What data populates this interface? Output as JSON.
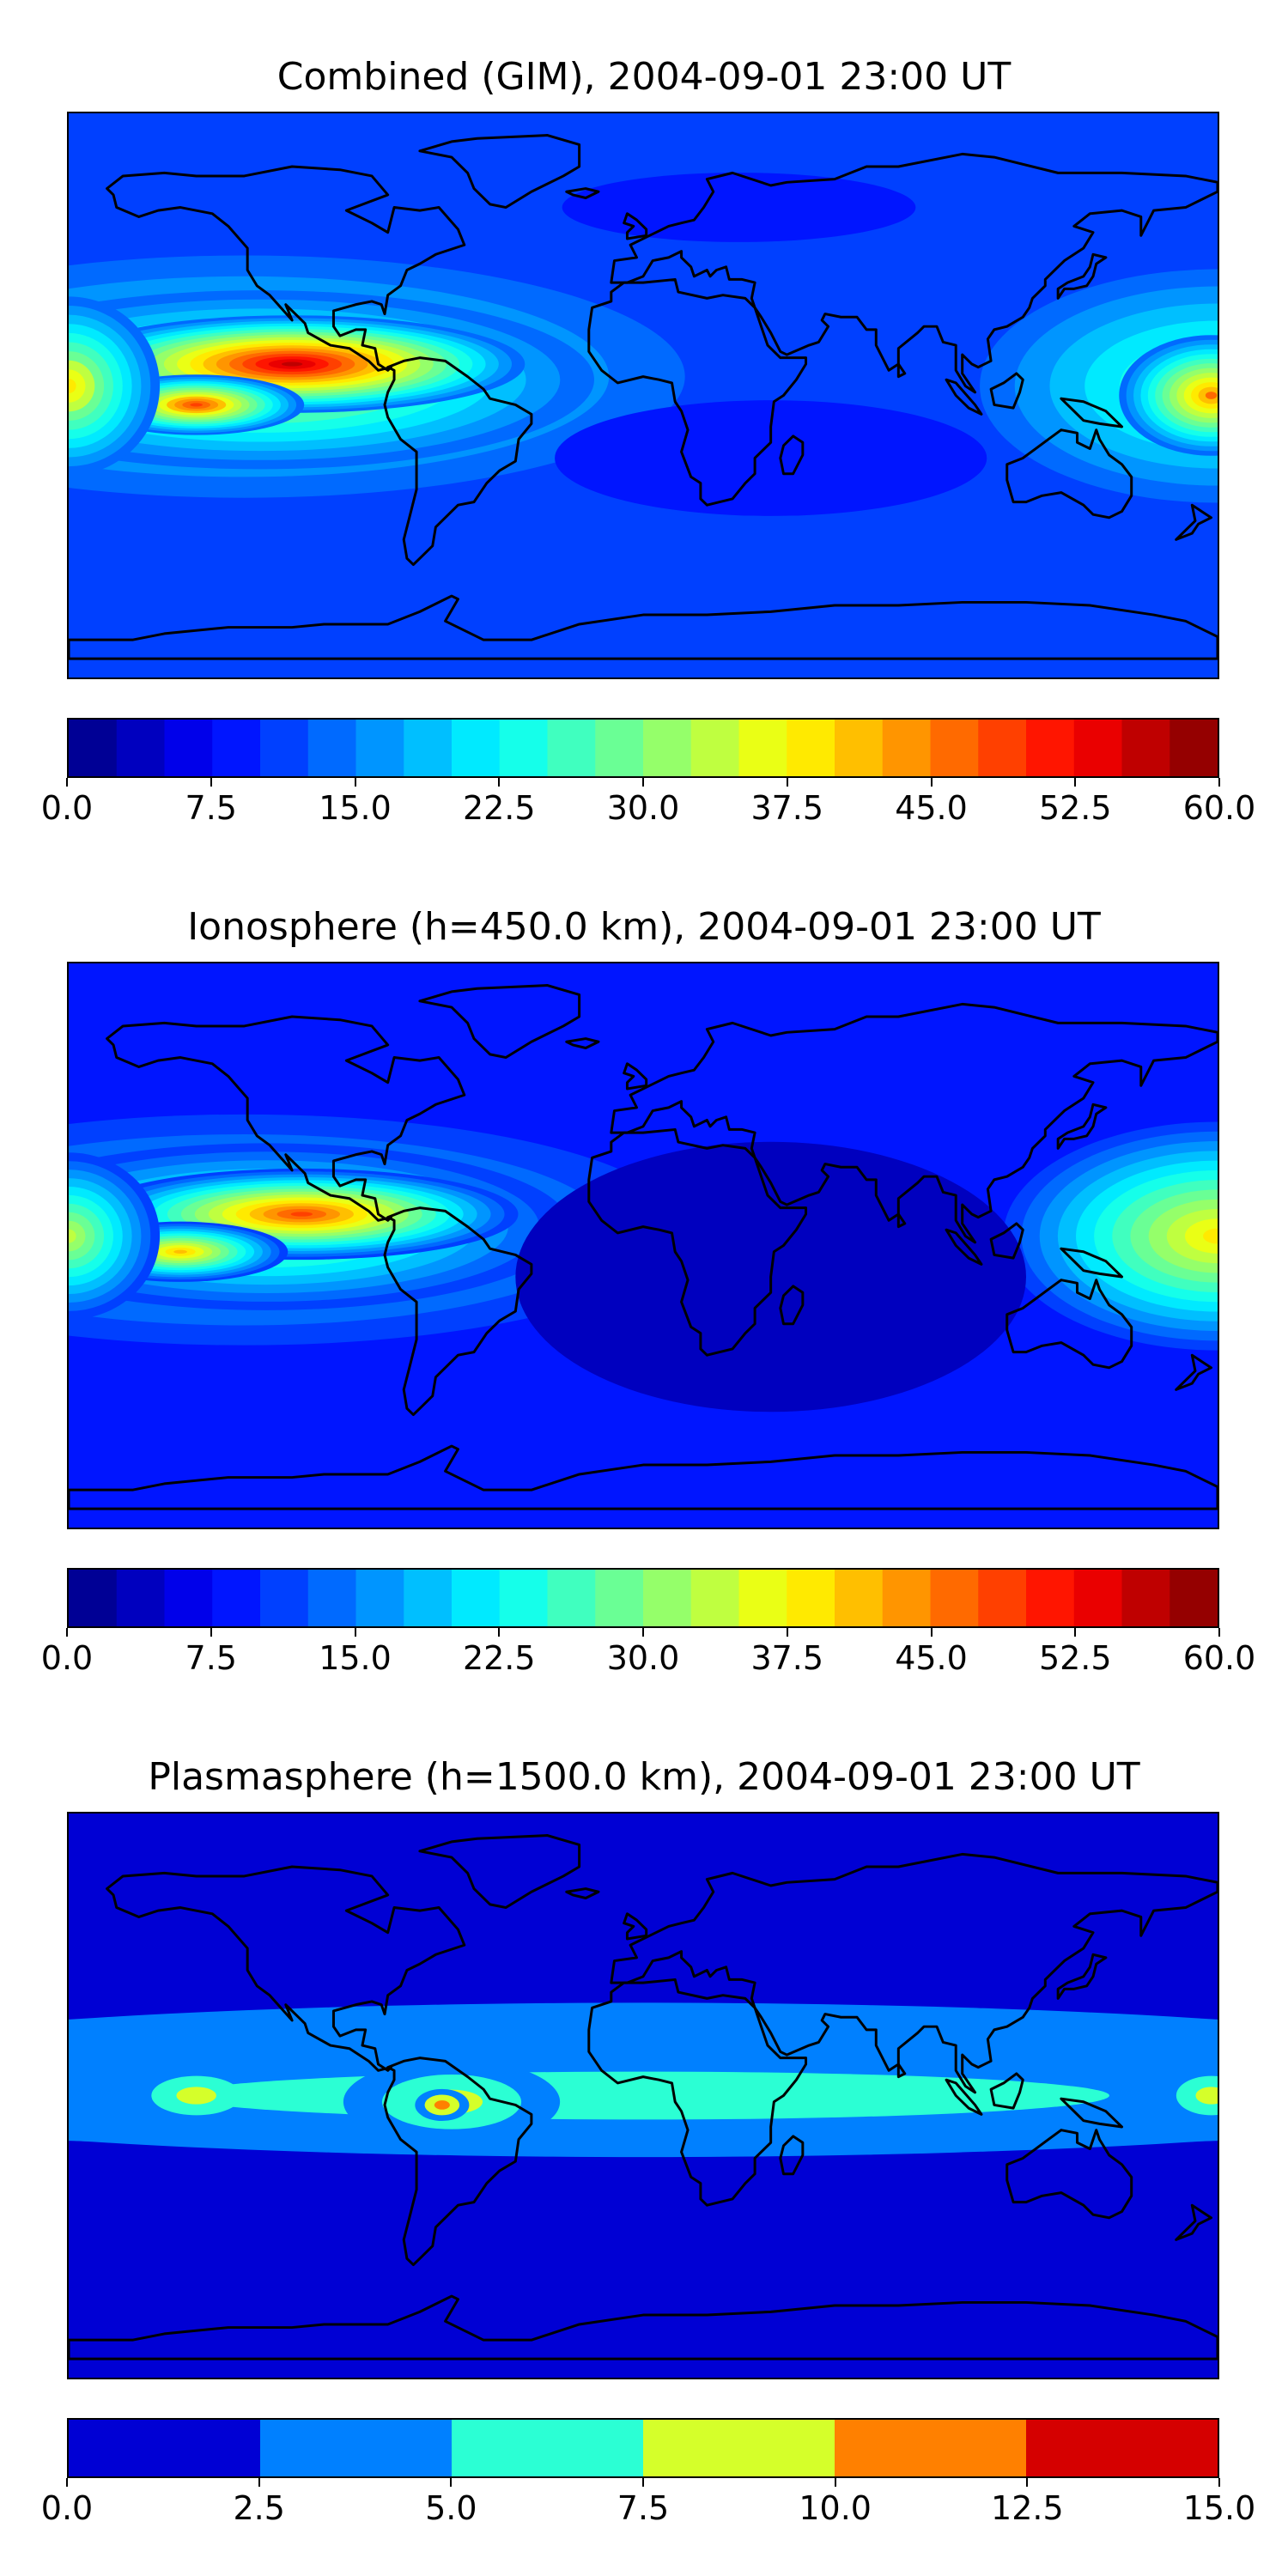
{
  "chart_data": [
    {
      "type": "heatmap",
      "title": "Combined (GIM), 2004-09-01 23:00 UT",
      "colorbar": {
        "range": [
          0,
          60
        ],
        "levels": 24,
        "ticks": [
          "0.0",
          "7.5",
          "15.0",
          "22.5",
          "30.0",
          "37.5",
          "45.0",
          "52.5",
          "60.0"
        ]
      },
      "features": [
        {
          "name": "equatorial anomaly peak, central Pacific / west of South America",
          "value": 57
        },
        {
          "name": "western Pacific enhancement",
          "value": 45
        },
        {
          "name": "southern secondary crest",
          "value": 48
        },
        {
          "name": "background low, Africa / Indian Ocean",
          "value": 8
        }
      ]
    },
    {
      "type": "heatmap",
      "title": "Ionosphere  (h=450.0 km), 2004-09-01 23:00 UT",
      "colorbar": {
        "range": [
          0,
          60
        ],
        "levels": 24,
        "ticks": [
          "0.0",
          "7.5",
          "15.0",
          "22.5",
          "30.0",
          "37.5",
          "45.0",
          "52.5",
          "60.0"
        ]
      },
      "features": [
        {
          "name": "equatorial anomaly peak, central Pacific / west of South America",
          "value": 48
        },
        {
          "name": "western Pacific enhancement",
          "value": 38
        },
        {
          "name": "southern secondary crest",
          "value": 42
        },
        {
          "name": "background low, Africa / Indian Ocean",
          "value": 4
        }
      ]
    },
    {
      "type": "heatmap",
      "title": "Plasmasphere (h=1500.0 km), 2004-09-01 23:00 UT",
      "colorbar": {
        "range": [
          0,
          15
        ],
        "levels": 6,
        "ticks": [
          "0.0",
          "2.5",
          "5.0",
          "7.5",
          "10.0",
          "12.5",
          "15.0"
        ]
      },
      "features": [
        {
          "name": "equatorial band",
          "value": 6.5
        },
        {
          "name": "peak over South America",
          "value": 11
        },
        {
          "name": "high-latitude background",
          "value": 1.5
        }
      ]
    }
  ],
  "colormap": "jet"
}
